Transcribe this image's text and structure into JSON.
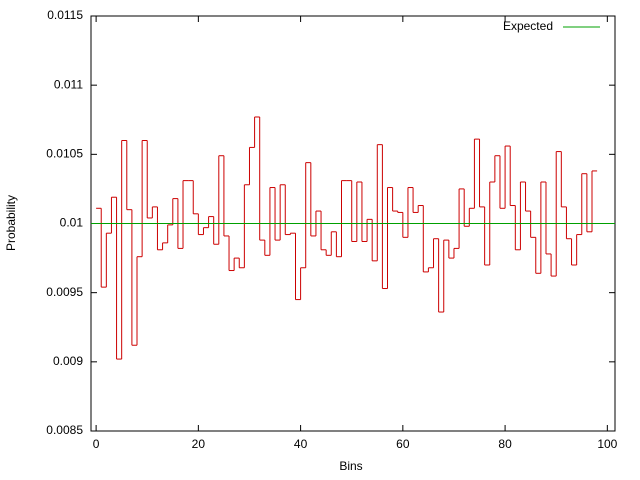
{
  "chart_data": {
    "type": "histogram",
    "x_label": "Bins",
    "y_label": "Probability",
    "bins": [
      0,
      1,
      2,
      3,
      4,
      5,
      6,
      7,
      8,
      9,
      10,
      11,
      12,
      13,
      14,
      15,
      16,
      17,
      18,
      19,
      20,
      21,
      22,
      23,
      24,
      25,
      26,
      27,
      28,
      29,
      30,
      31,
      32,
      33,
      34,
      35,
      36,
      37,
      38,
      39,
      40,
      41,
      42,
      43,
      44,
      45,
      46,
      47,
      48,
      49,
      50,
      51,
      52,
      53,
      54,
      55,
      56,
      57,
      58,
      59,
      60,
      61,
      62,
      63,
      64,
      65,
      66,
      67,
      68,
      69,
      70,
      71,
      72,
      73,
      74,
      75,
      76,
      77,
      78,
      79,
      80,
      81,
      82,
      83,
      84,
      85,
      86,
      87,
      88,
      89,
      90,
      91,
      92,
      93,
      94,
      95,
      96,
      97,
      98
    ],
    "values": [
      0.01011,
      0.00954,
      0.00993,
      0.01019,
      0.00902,
      0.0106,
      0.0101,
      0.00912,
      0.00976,
      0.0106,
      0.01004,
      0.01012,
      0.00981,
      0.00986,
      0.00999,
      0.01018,
      0.00982,
      0.01031,
      0.01031,
      0.01007,
      0.00992,
      0.00997,
      0.01005,
      0.00985,
      0.01049,
      0.00991,
      0.00966,
      0.00975,
      0.00968,
      0.01028,
      0.01055,
      0.01077,
      0.00988,
      0.00977,
      0.01026,
      0.00988,
      0.01028,
      0.00992,
      0.00993,
      0.00945,
      0.00968,
      0.01044,
      0.00991,
      0.01009,
      0.00981,
      0.00977,
      0.00994,
      0.00976,
      0.01031,
      0.01031,
      0.00987,
      0.0103,
      0.00987,
      0.01003,
      0.00973,
      0.01057,
      0.00953,
      0.01026,
      0.01009,
      0.01008,
      0.0099,
      0.01026,
      0.01008,
      0.01013,
      0.00965,
      0.00968,
      0.00989,
      0.00936,
      0.00988,
      0.00975,
      0.00982,
      0.01025,
      0.00998,
      0.01011,
      0.01061,
      0.01012,
      0.0097,
      0.0103,
      0.01049,
      0.01011,
      0.01056,
      0.01013,
      0.00981,
      0.0103,
      0.01009,
      0.0099,
      0.00964,
      0.0103,
      0.00978,
      0.00962,
      0.01052,
      0.01012,
      0.00989,
      0.0097,
      0.00992,
      0.01036,
      0.00994,
      0.01038
    ],
    "color": "#cc0000",
    "reference": {
      "name": "Expected",
      "value": 0.01,
      "color": "#00a000"
    },
    "xlim": [
      -1,
      101.5
    ],
    "xticks": [
      0,
      20,
      40,
      60,
      80,
      100
    ],
    "ylim": [
      0.0085,
      0.0115
    ],
    "yticks": [
      0.0085,
      0.009,
      0.0095,
      0.01,
      0.0105,
      0.011,
      0.0115
    ],
    "legend": "top-right"
  }
}
